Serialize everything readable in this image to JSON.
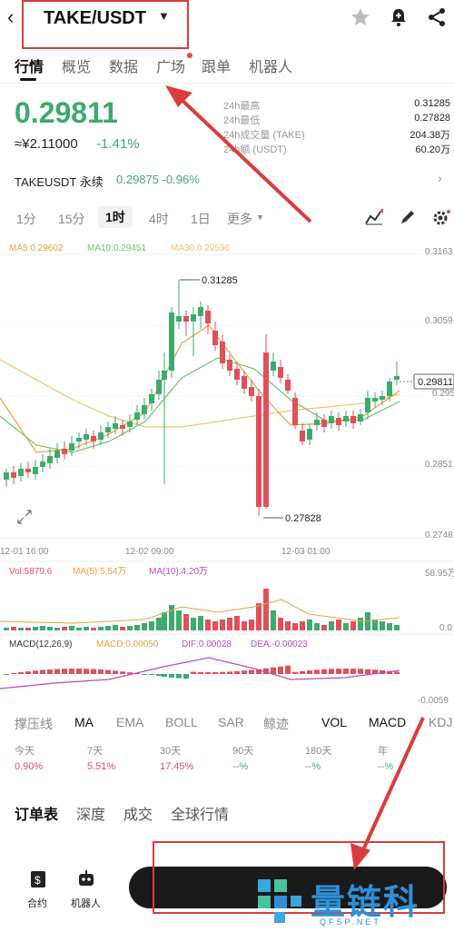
{
  "header": {
    "pair": "TAKE/USDT"
  },
  "tabs": [
    "行情",
    "概览",
    "数据",
    "广场",
    "跟单",
    "机器人"
  ],
  "price": {
    "last": "0.29811",
    "cny": "≈¥2.11000",
    "change": "-1.41%"
  },
  "stats": [
    {
      "label": "24h最高",
      "value": "0.31285"
    },
    {
      "label": "24h最低",
      "value": "0.27828"
    },
    {
      "label": "24h成交量 (TAKE)",
      "value": "204.38万"
    },
    {
      "label": "24h额 (USDT)",
      "value": "60.20万"
    }
  ],
  "perpetual": {
    "name": "TAKEUSDT 永续",
    "value": "0.29875 -0.96%"
  },
  "intervals": [
    "1分",
    "15分",
    "1时",
    "4时",
    "1日",
    "更多"
  ],
  "ma_legend": {
    "ma5": "MA5:0.29602",
    "ma10": "MA10:0.29451",
    "ma30": "MA30:0.29596"
  },
  "chart_labels": {
    "y_ticks": [
      "0.3163",
      "0.3059",
      "0.2955",
      "0.2851",
      "0.2748"
    ],
    "x_ticks": [
      "12-01 16:00",
      "12-02 09:00",
      "12-03 01:00"
    ],
    "high_label": "0.31285",
    "low_label": "0.27828",
    "last_label": "0.29811"
  },
  "vol_legend": {
    "vol": "Vol:5879.6",
    "ma5": "MA(5):5.54万",
    "ma10": "MA(10):4.20万",
    "top": "58.95万",
    "zero": "0.0"
  },
  "macd_legend": {
    "title": "MACD(12,26,9)",
    "macd": "MACD:0.00050",
    "dif": "DIF:0.00028",
    "dea": "DEA:-0.00023",
    "low": "-0.0059"
  },
  "indicators": [
    "撑压线",
    "MA",
    "EMA",
    "BOLL",
    "SAR",
    "鲸迹",
    "VOL",
    "MACD",
    "KDJ"
  ],
  "performance": [
    {
      "label": "今天",
      "value": "0.90%"
    },
    {
      "label": "7天",
      "value": "5.51%"
    },
    {
      "label": "30天",
      "value": "17.45%"
    },
    {
      "label": "90天",
      "value": "--%"
    },
    {
      "label": "180天",
      "value": "--%"
    },
    {
      "label": "年",
      "value": "--%"
    }
  ],
  "book_tabs": [
    "订单表",
    "深度",
    "成交",
    "全球行情"
  ],
  "bottom_nav": {
    "contract": "合约",
    "robot": "机器人"
  },
  "watermark": {
    "text": "量链科技",
    "sub": "QFSP.NET"
  },
  "colors": {
    "up": "#3dab6e",
    "down": "#e0505a",
    "ma5": "#e9a23b",
    "ma10": "#6cc36b",
    "ma30": "#e9c46a",
    "accent": "#d93c3c"
  },
  "chart_data": {
    "type": "candlestick",
    "x": [
      "12-01 16:00",
      "12-02 09:00",
      "12-03 01:00"
    ],
    "ylim": [
      0.2748,
      0.3163
    ],
    "high": 0.31285,
    "low": 0.27828,
    "last": 0.29811
  }
}
